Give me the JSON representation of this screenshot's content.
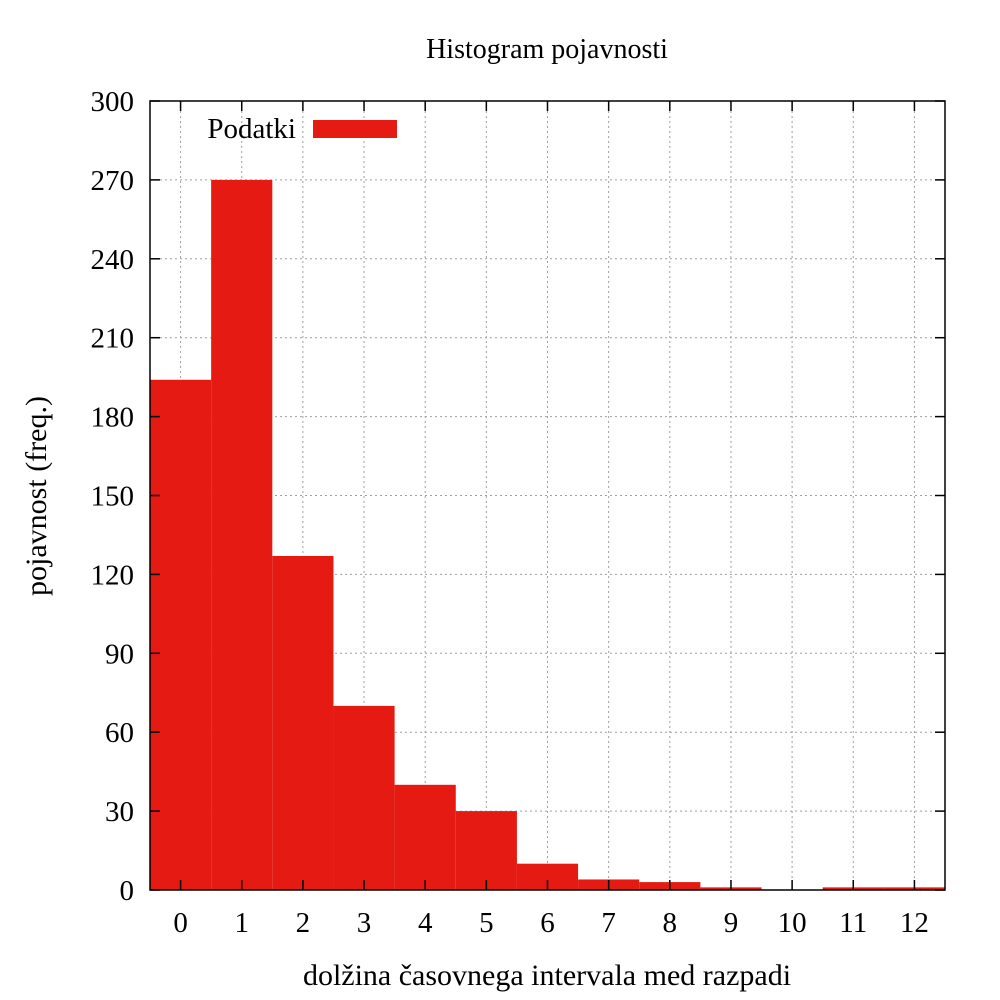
{
  "chart_data": {
    "type": "bar",
    "title": "Histogram pojavnosti",
    "xlabel": "dolžina časovnega intervala med razpadi",
    "ylabel": "pojavnost (freq.)",
    "categories": [
      "0",
      "1",
      "2",
      "3",
      "4",
      "5",
      "6",
      "7",
      "8",
      "9",
      "10",
      "11",
      "12"
    ],
    "series": [
      {
        "name": "Podatki",
        "values": [
          194,
          270,
          127,
          70,
          40,
          30,
          10,
          4,
          3,
          1,
          0,
          1,
          1
        ],
        "color": "#e41a13"
      }
    ],
    "xlim": [
      -0.5,
      12.5
    ],
    "ylim": [
      0,
      300
    ],
    "yticks": [
      0,
      30,
      60,
      90,
      120,
      150,
      180,
      210,
      240,
      270,
      300
    ],
    "grid": true,
    "legend_position": "top-left"
  }
}
